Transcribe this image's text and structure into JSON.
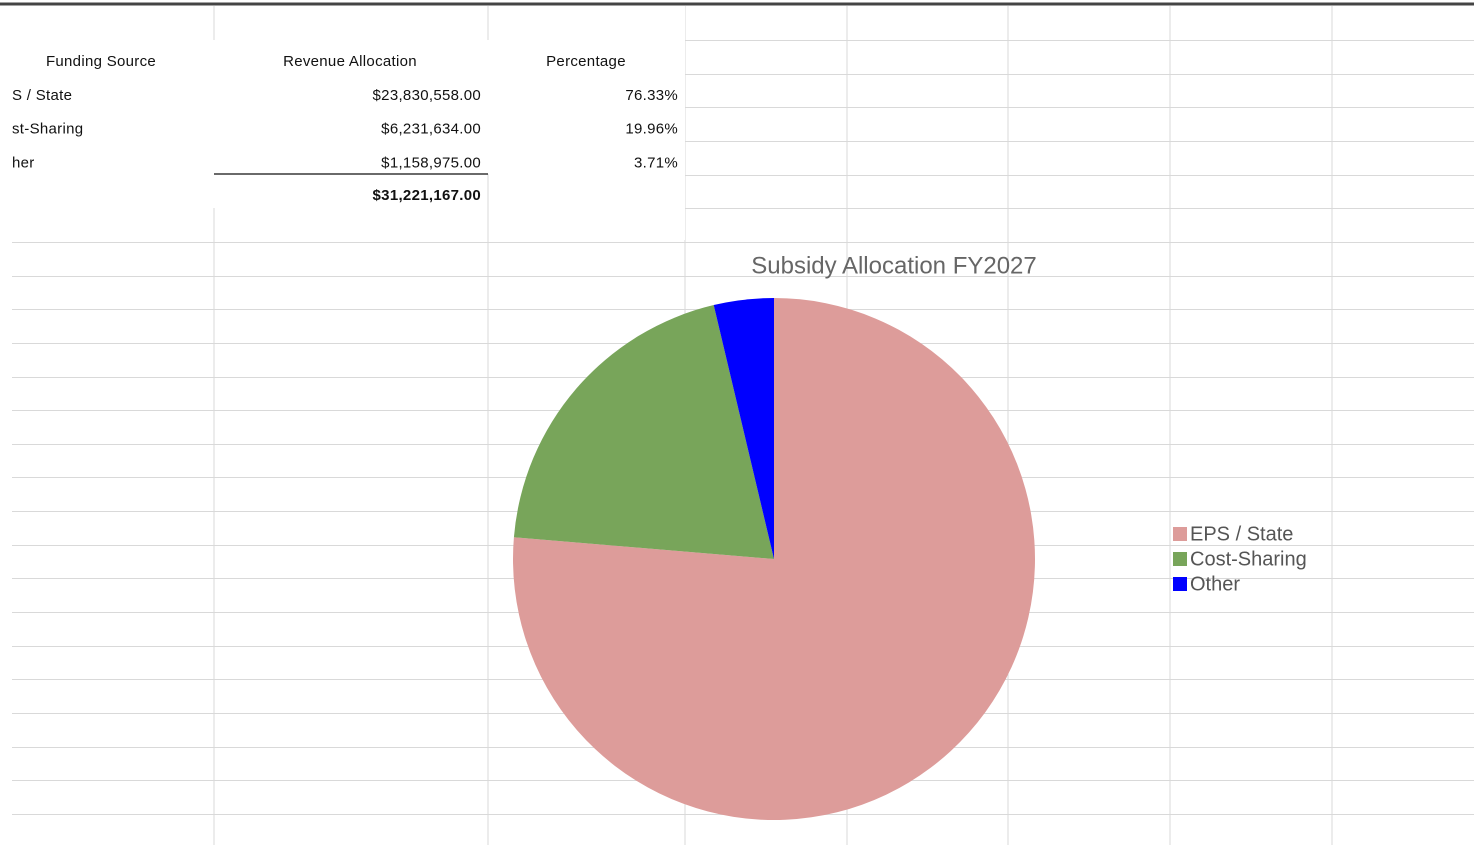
{
  "table": {
    "header": [
      "Funding Source",
      "Revenue Allocation",
      "Percentage"
    ],
    "rows": [
      [
        "S / State",
        "$23,830,558.00",
        "76.33%"
      ],
      [
        "st-Sharing",
        "$6,231,634.00",
        "19.96%"
      ],
      [
        "her",
        "$1,158,975.00",
        "3.71%"
      ]
    ],
    "total": "$31,221,167.00"
  },
  "chart_data": {
    "type": "pie",
    "title": "Subsidy Allocation FY2027",
    "categories": [
      "EPS / State",
      "Cost-Sharing",
      "Other"
    ],
    "values": [
      76.33,
      19.96,
      3.71
    ],
    "colors": [
      "#dd9c9a",
      "#78a55a",
      "#0000ff"
    ],
    "legend": "right"
  }
}
